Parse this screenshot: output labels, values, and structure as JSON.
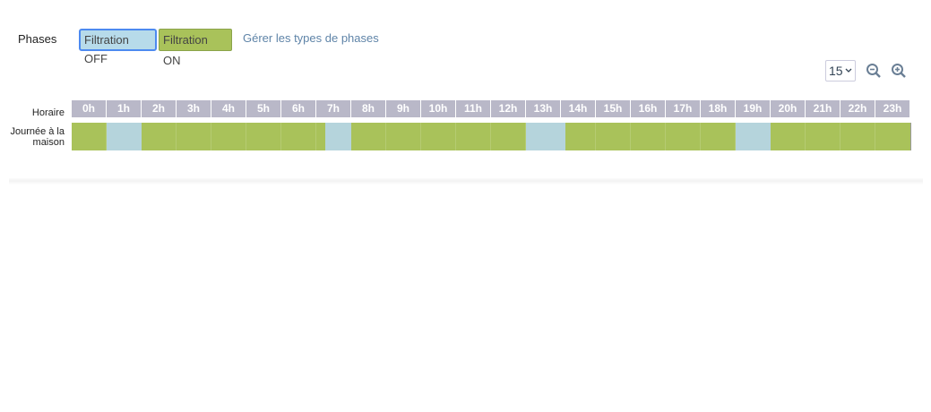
{
  "toolbar": {
    "label": "Phases",
    "buttons": [
      "Filtration OFF",
      "Filtration ON"
    ],
    "link": "Gérer les types de phases"
  },
  "zoom": {
    "step": "15"
  },
  "timeline": {
    "header_label": "Horaire",
    "row_label": "Journée à la maison",
    "hours": [
      "0h",
      "1h",
      "2h",
      "3h",
      "4h",
      "5h",
      "6h",
      "7h",
      "8h",
      "9h",
      "10h",
      "11h",
      "12h",
      "13h",
      "14h",
      "15h",
      "16h",
      "17h",
      "18h",
      "19h",
      "20h",
      "21h",
      "22h",
      "23h"
    ],
    "off_periods": [
      [
        1,
        2
      ],
      [
        7.25,
        8
      ],
      [
        13,
        14.125
      ],
      [
        19,
        20
      ]
    ]
  }
}
